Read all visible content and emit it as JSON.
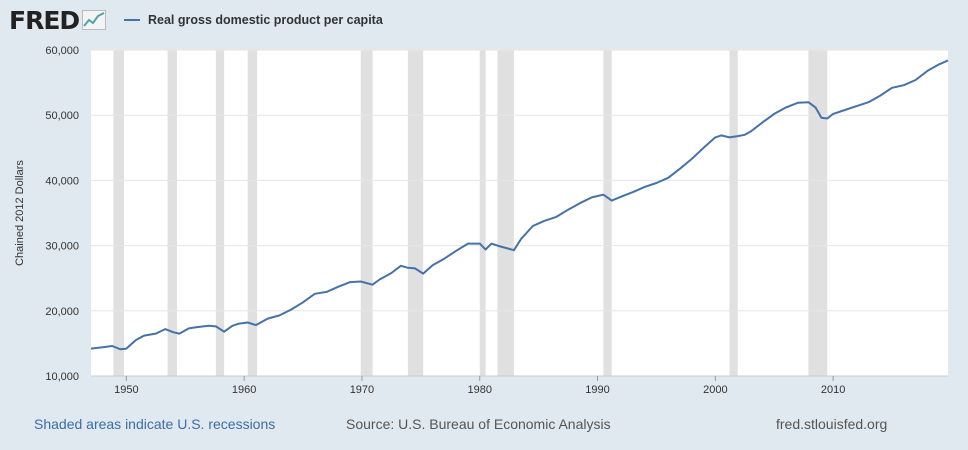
{
  "brand": {
    "logo_text": "FRED",
    "logo_icon": "line-graph-icon"
  },
  "legend": {
    "label": "Real gross domestic product per capita",
    "color": "#4572a7"
  },
  "footer": {
    "note": "Shaded areas indicate U.S. recessions",
    "source": "Source: U.S. Bureau of Economic Analysis",
    "site": "fred.stlouisfed.org"
  },
  "chart_data": {
    "type": "line",
    "title": "",
    "xlabel": "",
    "ylabel": "Chained 2012 Dollars",
    "xlim": [
      1947.0,
      2019.75
    ],
    "ylim": [
      10000,
      60000
    ],
    "yticks": [
      10000,
      20000,
      30000,
      40000,
      50000,
      60000
    ],
    "ytick_labels": [
      "10,000",
      "20,000",
      "30,000",
      "40,000",
      "50,000",
      "60,000"
    ],
    "xticks": [
      1950,
      1960,
      1970,
      1980,
      1990,
      2000,
      2010
    ],
    "xtick_labels": [
      "1950",
      "1960",
      "1970",
      "1980",
      "1990",
      "2000",
      "2010"
    ],
    "grid": true,
    "line_color": "#4572a7",
    "recession_color": "#e0e0e0",
    "recessions": [
      [
        1948.9,
        1949.8
      ],
      [
        1953.5,
        1954.3
      ],
      [
        1957.6,
        1958.3
      ],
      [
        1960.3,
        1961.1
      ],
      [
        1969.9,
        1970.9
      ],
      [
        1973.9,
        1975.2
      ],
      [
        1980.0,
        1980.5
      ],
      [
        1981.5,
        1982.9
      ],
      [
        1990.5,
        1991.2
      ],
      [
        2001.2,
        2001.9
      ],
      [
        2007.9,
        2009.5
      ]
    ],
    "series": [
      {
        "name": "Real gross domestic product per capita",
        "x": [
          1947.0,
          1948.0,
          1948.8,
          1949.5,
          1950.0,
          1950.8,
          1951.5,
          1952.5,
          1953.3,
          1954.0,
          1954.5,
          1955.3,
          1956.0,
          1957.0,
          1957.6,
          1958.3,
          1959.0,
          1959.5,
          1960.3,
          1961.0,
          1962.0,
          1963.0,
          1964.0,
          1965.0,
          1966.0,
          1967.0,
          1968.0,
          1969.0,
          1969.9,
          1970.9,
          1971.5,
          1972.5,
          1973.3,
          1973.9,
          1974.5,
          1975.2,
          1976.0,
          1977.0,
          1978.0,
          1979.0,
          1980.0,
          1980.5,
          1981.0,
          1981.5,
          1982.9,
          1983.5,
          1984.5,
          1985.5,
          1986.5,
          1987.5,
          1988.5,
          1989.5,
          1990.5,
          1991.2,
          1992.0,
          1993.0,
          1994.0,
          1995.0,
          1996.0,
          1997.0,
          1998.0,
          1999.0,
          2000.0,
          2000.5,
          2001.2,
          2001.9,
          2002.5,
          2003.0,
          2004.0,
          2005.0,
          2006.0,
          2007.0,
          2007.9,
          2008.5,
          2009.0,
          2009.5,
          2010.0,
          2011.0,
          2012.0,
          2013.0,
          2014.0,
          2015.0,
          2016.0,
          2017.0,
          2018.0,
          2019.0,
          2019.75
        ],
        "values": [
          14200,
          14400,
          14600,
          14100,
          14200,
          15500,
          16200,
          16500,
          17200,
          16700,
          16500,
          17300,
          17500,
          17700,
          17600,
          16800,
          17700,
          18000,
          18200,
          17800,
          18800,
          19300,
          20200,
          21300,
          22600,
          22900,
          23700,
          24400,
          24500,
          24000,
          24800,
          25800,
          26900,
          26600,
          26500,
          25700,
          27000,
          28000,
          29200,
          30300,
          30300,
          29400,
          30300,
          30000,
          29300,
          31000,
          33000,
          33800,
          34400,
          35500,
          36500,
          37400,
          37800,
          36900,
          37500,
          38200,
          39000,
          39600,
          40400,
          41800,
          43300,
          45000,
          46600,
          46900,
          46600,
          46800,
          47000,
          47500,
          48900,
          50200,
          51200,
          51900,
          52000,
          51200,
          49600,
          49500,
          50200,
          50800,
          51400,
          52000,
          53000,
          54200,
          54600,
          55400,
          56800,
          57800,
          58400
        ]
      }
    ]
  }
}
